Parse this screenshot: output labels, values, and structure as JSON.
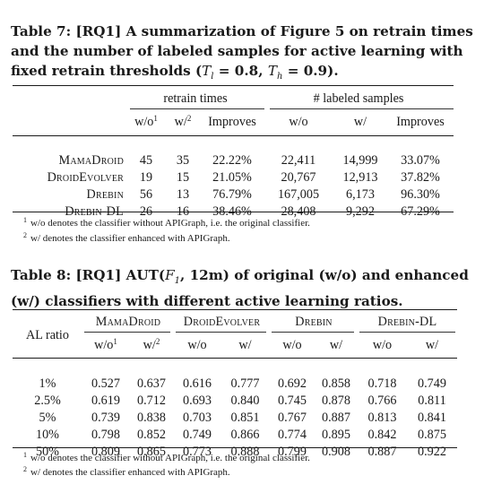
{
  "table7": {
    "caption_label": "Table 7: [RQ1]",
    "caption_pre": "A summarization of Figure 5 on retrain times and the number of labeled samples for active learning with fixed retrain thresholds (",
    "caption_tl": "T",
    "caption_tl_sub": "l",
    "caption_tl_val": " = 0.8, ",
    "caption_th": "T",
    "caption_th_sub": "h",
    "caption_th_val": " = 0.9).",
    "group_retrain": "retrain times",
    "group_labeled": "# labeled samples",
    "col_wo": "w/o",
    "col_wo_sup": "1",
    "col_w": "w/",
    "col_w_sup": "2",
    "col_improves": "Improves",
    "col_wo2": "w/o",
    "col_w2": "w/",
    "col_improves2": "Improves",
    "rows": [
      {
        "name": "MamaDroid",
        "rt_wo": "45",
        "rt_w": "35",
        "rt_imp": "22.22%",
        "ls_wo": "22,411",
        "ls_w": "14,999",
        "ls_imp": "33.07%"
      },
      {
        "name": "DroidEvolver",
        "rt_wo": "19",
        "rt_w": "15",
        "rt_imp": "21.05%",
        "ls_wo": "20,767",
        "ls_w": "12,913",
        "ls_imp": "37.82%"
      },
      {
        "name": "Drebin",
        "rt_wo": "56",
        "rt_w": "13",
        "rt_imp": "76.79%",
        "ls_wo": "167,005",
        "ls_w": "6,173",
        "ls_imp": "96.30%"
      },
      {
        "name": "Drebin-DL",
        "rt_wo": "26",
        "rt_w": "16",
        "rt_imp": "38.46%",
        "ls_wo": "28,408",
        "ls_w": "9,292",
        "ls_imp": "67.29%"
      }
    ],
    "footnote1_mark": "1",
    "footnote1": "w/o denotes the classifier without APIGraph, i.e. the original classifier.",
    "footnote2_mark": "2",
    "footnote2": "w/ denotes the classifier enhanced with APIGraph."
  },
  "table8": {
    "caption_label": "Table 8: [RQ1]",
    "caption_pre": "AUT(",
    "caption_f": "F",
    "caption_f_sub": "1",
    "caption_post": ", 12m) of original (w/o) and enhanced (w/) classifiers with different active learning ratios.",
    "col_al": "AL ratio",
    "groups": [
      "MamaDroid",
      "DroidEvolver",
      "Drebin",
      "Drebin-DL"
    ],
    "col_wo": "w/o",
    "col_wo_sup": "1",
    "col_w": "w/",
    "col_w_sup": "2",
    "col_wo_plain": "w/o",
    "col_w_plain": "w/",
    "rows": [
      {
        "ratio": "1%",
        "v": [
          "0.527",
          "0.637",
          "0.616",
          "0.777",
          "0.692",
          "0.858",
          "0.718",
          "0.749"
        ]
      },
      {
        "ratio": "2.5%",
        "v": [
          "0.619",
          "0.712",
          "0.693",
          "0.840",
          "0.745",
          "0.878",
          "0.766",
          "0.811"
        ]
      },
      {
        "ratio": "5%",
        "v": [
          "0.739",
          "0.838",
          "0.703",
          "0.851",
          "0.767",
          "0.887",
          "0.813",
          "0.841"
        ]
      },
      {
        "ratio": "10%",
        "v": [
          "0.798",
          "0.852",
          "0.749",
          "0.866",
          "0.774",
          "0.895",
          "0.842",
          "0.875"
        ]
      },
      {
        "ratio": "50%",
        "v": [
          "0.809",
          "0.865",
          "0.773",
          "0.888",
          "0.799",
          "0.908",
          "0.887",
          "0.922"
        ]
      }
    ],
    "footnote1_mark": "1",
    "footnote1": "w/o denotes the classifier without APIGraph, i.e. the original classifier.",
    "footnote2_mark": "2",
    "footnote2": "w/ denotes the classifier enhanced with APIGraph."
  }
}
